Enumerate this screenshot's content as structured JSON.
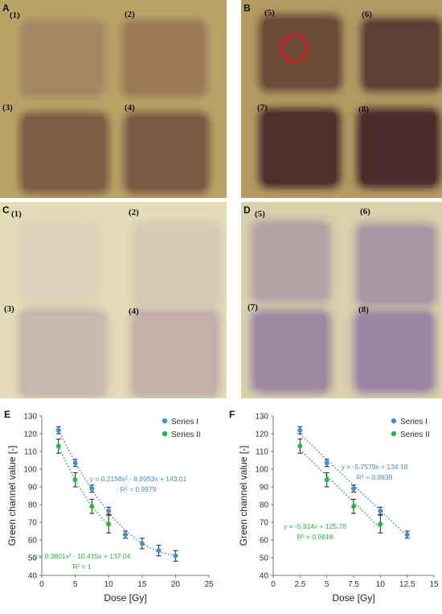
{
  "film_panels": [
    {
      "letter": "A",
      "background": "#b9a468",
      "squares": [
        {
          "label": "(1)",
          "color": "#a68762"
        },
        {
          "label": "(2)",
          "color": "#9b7a55"
        },
        {
          "label": "(3)",
          "color": "#7e5d45"
        },
        {
          "label": "(4)",
          "color": "#7b5a44"
        }
      ]
    },
    {
      "letter": "B",
      "background": "#b29c63",
      "squares": [
        {
          "label": "(5)",
          "color": "#6e4a39"
        },
        {
          "label": "(6)",
          "color": "#5e3d32"
        },
        {
          "label": "(7)",
          "color": "#4f2f2c"
        },
        {
          "label": "(8)",
          "color": "#4c2d2b"
        }
      ],
      "roi_marker": {
        "color": "#e0141a"
      }
    },
    {
      "letter": "C",
      "background": "#e4dcb8",
      "squares": [
        {
          "label": "(1)",
          "color": "#ddd1b9"
        },
        {
          "label": "(2)",
          "color": "#d7c9b3"
        },
        {
          "label": "(3)",
          "color": "#c8b7ad"
        },
        {
          "label": "(4)",
          "color": "#c2b0a8"
        }
      ]
    },
    {
      "letter": "D",
      "background": "#d9d0ac",
      "squares": [
        {
          "label": "(5)",
          "color": "#b5a3a6"
        },
        {
          "label": "(6)",
          "color": "#aa97a3"
        },
        {
          "label": "(7)",
          "color": "#9c89a2"
        },
        {
          "label": "(8)",
          "color": "#9886a3"
        }
      ]
    }
  ],
  "chart_data": [
    {
      "panel": "E",
      "type": "scatter",
      "xlabel": "Dose [Gy]",
      "ylabel": "Green channel value [-]",
      "xlim": [
        0,
        25
      ],
      "ylim": [
        40,
        130
      ],
      "xticks": [
        "0",
        "5",
        "10",
        "15",
        "20",
        "25"
      ],
      "yticks": [
        "40",
        "50",
        "60",
        "70",
        "80",
        "90",
        "100",
        "110",
        "120",
        "130"
      ],
      "legend_position": "top-right",
      "grid": false,
      "series": [
        {
          "name": "Series I",
          "color": "#4a8dc8",
          "x": [
            2.5,
            5,
            7.5,
            10,
            12.5,
            15,
            17.5,
            20
          ],
          "y": [
            122,
            103.5,
            89,
            76.5,
            63,
            58,
            54,
            51
          ],
          "err": [
            2,
            2,
            2,
            2,
            2,
            3,
            3,
            3
          ],
          "fit": {
            "type": "poly2",
            "a": 0.2158,
            "b": -8.8953,
            "c": 143.01,
            "range": [
              2.5,
              20
            ]
          },
          "equation": "y = 0.2158x² - 8.8953x + 143.01",
          "r2": "R² = 0.9979"
        },
        {
          "name": "Series II",
          "color": "#2fb04a",
          "x": [
            2.5,
            5,
            7.5,
            10
          ],
          "y": [
            113,
            94,
            79,
            69
          ],
          "err": [
            4,
            4,
            4,
            5
          ],
          "fit": {
            "type": "poly2",
            "a": 0.3601,
            "b": -10.415,
            "c": 137.04,
            "range": [
              2.5,
              10
            ]
          },
          "equation": "y = 0.3601x² - 10.415x + 137.04",
          "r2": "R² = 1"
        }
      ]
    },
    {
      "panel": "F",
      "type": "scatter",
      "xlabel": "Dose [Gy]",
      "ylabel": "Green channel value [-]",
      "xlim": [
        0,
        15
      ],
      "ylim": [
        40,
        130
      ],
      "xticks": [
        "0",
        "2.5",
        "5",
        "7.5",
        "10",
        "12.5",
        "15"
      ],
      "yticks": [
        "40",
        "50",
        "60",
        "70",
        "80",
        "90",
        "100",
        "110",
        "120",
        "130"
      ],
      "legend_position": "top-right",
      "grid": false,
      "series": [
        {
          "name": "Series I",
          "color": "#4a8dc8",
          "x": [
            2.5,
            5,
            7.5,
            10,
            12.5
          ],
          "y": [
            122,
            103.5,
            89,
            76.5,
            63
          ],
          "err": [
            2,
            2,
            2,
            2,
            2
          ],
          "fit": {
            "type": "linear",
            "a": 0,
            "b": -5.7579,
            "c": 134.18,
            "range": [
              2.5,
              12.5
            ]
          },
          "equation": "y = -5.7579x + 134.18",
          "r2": "R² = 0.9939"
        },
        {
          "name": "Series II",
          "color": "#2fb04a",
          "x": [
            2.5,
            5,
            7.5,
            10
          ],
          "y": [
            113,
            94,
            79,
            69
          ],
          "err": [
            4,
            4,
            4,
            5
          ],
          "fit": {
            "type": "linear",
            "a": 0,
            "b": -5.914,
            "c": 125.78,
            "range": [
              2.5,
              10
            ]
          },
          "equation": "y = -5.914x + 125.78",
          "r2": "R² = 0.9818"
        }
      ]
    }
  ]
}
